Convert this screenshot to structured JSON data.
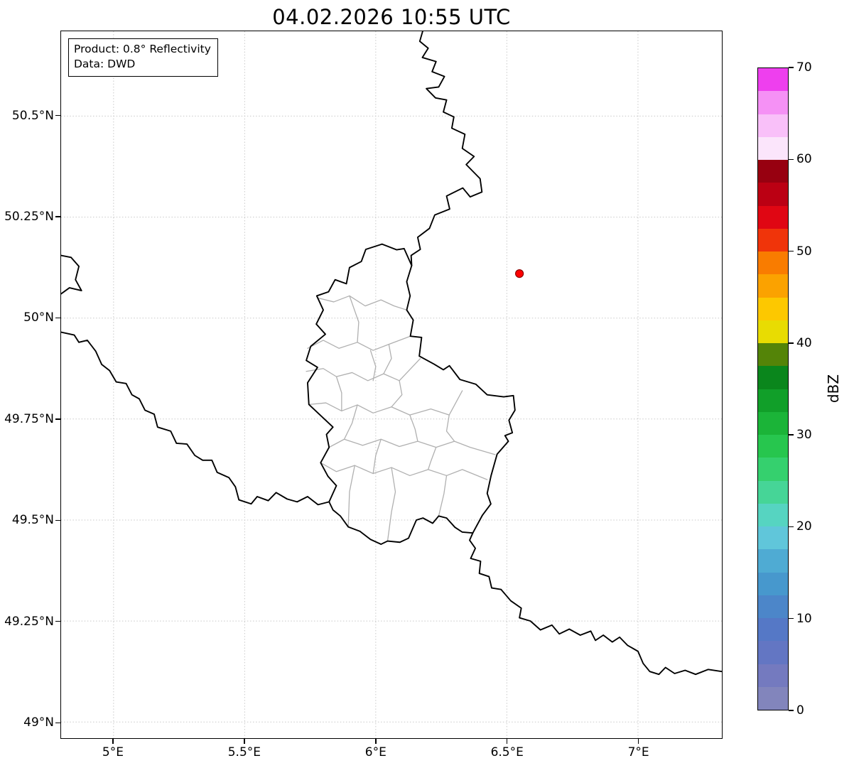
{
  "title": "04.02.2026 10:55 UTC",
  "annotation": {
    "product": "Product: 0.8° Reflectivity",
    "source": "Data: DWD"
  },
  "map": {
    "extent": {
      "lon_min": 4.8,
      "lon_max": 7.32,
      "lat_min": 48.96,
      "lat_max": 50.71
    },
    "colors": {
      "grid": "#c8c8c8",
      "country_border": "#000000",
      "region_border": "#b0b0b0"
    },
    "marker": {
      "name": "radar-site",
      "lon": 6.548,
      "lat": 50.11,
      "fill": "#ff0000",
      "edge": "#8b0000"
    },
    "x_ticks": [
      {
        "label": "5°E",
        "lon": 5.0
      },
      {
        "label": "5.5°E",
        "lon": 5.5
      },
      {
        "label": "6°E",
        "lon": 6.0
      },
      {
        "label": "6.5°E",
        "lon": 6.5
      },
      {
        "label": "7°E",
        "lon": 7.0
      }
    ],
    "y_ticks": [
      {
        "label": "49°N",
        "lat": 49.0
      },
      {
        "label": "49.25°N",
        "lat": 49.25
      },
      {
        "label": "49.5°N",
        "lat": 49.5
      },
      {
        "label": "49.75°N",
        "lat": 49.75
      },
      {
        "label": "50°N",
        "lat": 50.0
      },
      {
        "label": "50.25°N",
        "lat": 50.25
      },
      {
        "label": "50.5°N",
        "lat": 50.5
      }
    ],
    "country_borders": [
      [
        [
          6.179,
          50.71
        ],
        [
          6.168,
          50.685
        ],
        [
          6.2,
          50.668
        ],
        [
          6.178,
          50.645
        ],
        [
          6.23,
          50.635
        ],
        [
          6.215,
          50.61
        ],
        [
          6.262,
          50.598
        ],
        [
          6.24,
          50.572
        ],
        [
          6.193,
          50.568
        ],
        [
          6.228,
          50.545
        ],
        [
          6.27,
          50.54
        ],
        [
          6.258,
          50.51
        ],
        [
          6.298,
          50.498
        ],
        [
          6.29,
          50.47
        ],
        [
          6.34,
          50.455
        ],
        [
          6.33,
          50.42
        ],
        [
          6.375,
          50.4
        ],
        [
          6.345,
          50.38
        ],
        [
          6.398,
          50.345
        ],
        [
          6.405,
          50.312
        ],
        [
          6.36,
          50.3
        ],
        [
          6.332,
          50.322
        ],
        [
          6.27,
          50.302
        ],
        [
          6.282,
          50.27
        ],
        [
          6.225,
          50.255
        ],
        [
          6.205,
          50.222
        ],
        [
          6.16,
          50.2
        ],
        [
          6.17,
          50.17
        ],
        [
          6.135,
          50.155
        ],
        [
          6.137,
          50.13
        ]
      ],
      [
        [
          6.024,
          50.183
        ],
        [
          6.08,
          50.169
        ],
        [
          6.108,
          50.172
        ],
        [
          6.137,
          50.13
        ],
        [
          6.118,
          50.09
        ],
        [
          6.131,
          50.055
        ],
        [
          6.118,
          50.02
        ],
        [
          6.143,
          49.995
        ],
        [
          6.132,
          49.955
        ],
        [
          6.175,
          49.952
        ],
        [
          6.166,
          49.906
        ],
        [
          6.222,
          49.886
        ],
        [
          6.258,
          49.872
        ],
        [
          6.281,
          49.882
        ],
        [
          6.321,
          49.848
        ],
        [
          6.382,
          49.836
        ],
        [
          6.425,
          49.81
        ],
        [
          6.488,
          49.805
        ],
        [
          6.525,
          49.808
        ],
        [
          6.531,
          49.772
        ],
        [
          6.508,
          49.747
        ],
        [
          6.521,
          49.716
        ],
        [
          6.493,
          49.709
        ],
        [
          6.506,
          49.695
        ],
        [
          6.463,
          49.663
        ],
        [
          6.44,
          49.61
        ],
        [
          6.425,
          49.566
        ],
        [
          6.439,
          49.54
        ],
        [
          6.407,
          49.512
        ],
        [
          6.37,
          49.468
        ],
        [
          6.33,
          49.47
        ],
        [
          6.302,
          49.482
        ],
        [
          6.27,
          49.505
        ],
        [
          6.24,
          49.51
        ],
        [
          6.217,
          49.492
        ],
        [
          6.18,
          49.505
        ],
        [
          6.155,
          49.5
        ],
        [
          6.125,
          49.455
        ],
        [
          6.092,
          49.445
        ],
        [
          6.045,
          49.448
        ],
        [
          6.02,
          49.44
        ],
        [
          5.98,
          49.452
        ],
        [
          5.94,
          49.472
        ],
        [
          5.895,
          49.483
        ],
        [
          5.865,
          49.51
        ],
        [
          5.837,
          49.525
        ],
        [
          5.822,
          49.545
        ],
        [
          5.85,
          49.585
        ],
        [
          5.818,
          49.608
        ],
        [
          5.79,
          49.642
        ],
        [
          5.822,
          49.68
        ],
        [
          5.812,
          49.712
        ],
        [
          5.837,
          49.73
        ],
        [
          5.745,
          49.786
        ],
        [
          5.74,
          49.84
        ],
        [
          5.778,
          49.878
        ],
        [
          5.735,
          49.895
        ],
        [
          5.752,
          49.93
        ],
        [
          5.808,
          49.96
        ],
        [
          5.773,
          49.985
        ],
        [
          5.8,
          50.02
        ],
        [
          5.775,
          50.055
        ],
        [
          5.82,
          50.065
        ],
        [
          5.845,
          50.095
        ],
        [
          5.888,
          50.085
        ],
        [
          5.9,
          50.125
        ],
        [
          5.945,
          50.14
        ],
        [
          5.962,
          50.17
        ],
        [
          6.024,
          50.183
        ]
      ],
      [
        [
          4.8,
          50.155
        ],
        [
          4.838,
          50.15
        ],
        [
          4.868,
          50.128
        ],
        [
          4.855,
          50.095
        ],
        [
          4.878,
          50.068
        ],
        [
          4.832,
          50.075
        ],
        [
          4.8,
          50.06
        ]
      ],
      [
        [
          4.8,
          49.965
        ],
        [
          4.85,
          49.958
        ],
        [
          4.868,
          49.94
        ],
        [
          4.9,
          49.945
        ],
        [
          4.932,
          49.918
        ],
        [
          4.955,
          49.885
        ],
        [
          4.985,
          49.87
        ],
        [
          5.01,
          49.842
        ],
        [
          5.048,
          49.838
        ],
        [
          5.07,
          49.81
        ],
        [
          5.098,
          49.8
        ],
        [
          5.12,
          49.772
        ],
        [
          5.155,
          49.762
        ],
        [
          5.168,
          49.73
        ],
        [
          5.218,
          49.72
        ],
        [
          5.24,
          49.69
        ],
        [
          5.28,
          49.688
        ],
        [
          5.31,
          49.66
        ],
        [
          5.34,
          49.648
        ],
        [
          5.375,
          49.648
        ],
        [
          5.395,
          49.618
        ],
        [
          5.44,
          49.605
        ],
        [
          5.465,
          49.582
        ],
        [
          5.478,
          49.55
        ],
        [
          5.525,
          49.54
        ],
        [
          5.548,
          49.558
        ],
        [
          5.59,
          49.548
        ],
        [
          5.62,
          49.568
        ],
        [
          5.662,
          49.552
        ],
        [
          5.7,
          49.545
        ],
        [
          5.74,
          49.558
        ],
        [
          5.78,
          49.538
        ],
        [
          5.822,
          49.545
        ]
      ],
      [
        [
          6.37,
          49.468
        ],
        [
          6.358,
          49.45
        ],
        [
          6.38,
          49.43
        ],
        [
          6.362,
          49.405
        ],
        [
          6.4,
          49.398
        ],
        [
          6.395,
          49.368
        ],
        [
          6.432,
          49.36
        ],
        [
          6.442,
          49.332
        ],
        [
          6.478,
          49.328
        ],
        [
          6.515,
          49.3
        ],
        [
          6.555,
          49.282
        ],
        [
          6.548,
          49.258
        ],
        [
          6.59,
          49.25
        ],
        [
          6.628,
          49.228
        ],
        [
          6.672,
          49.24
        ],
        [
          6.7,
          49.218
        ],
        [
          6.738,
          49.23
        ],
        [
          6.78,
          49.215
        ],
        [
          6.82,
          49.225
        ],
        [
          6.838,
          49.202
        ],
        [
          6.868,
          49.215
        ],
        [
          6.902,
          49.198
        ],
        [
          6.93,
          49.21
        ],
        [
          6.96,
          49.19
        ],
        [
          7.0,
          49.175
        ],
        [
          7.02,
          49.145
        ],
        [
          7.045,
          49.125
        ],
        [
          7.08,
          49.118
        ],
        [
          7.105,
          49.135
        ],
        [
          7.14,
          49.12
        ],
        [
          7.18,
          49.128
        ],
        [
          7.22,
          49.118
        ],
        [
          7.268,
          49.13
        ],
        [
          7.32,
          49.125
        ]
      ]
    ],
    "region_borders": [
      [
        [
          5.778,
          50.05
        ],
        [
          5.84,
          50.04
        ],
        [
          5.9,
          50.055
        ],
        [
          5.96,
          50.03
        ],
        [
          6.02,
          50.045
        ],
        [
          6.07,
          50.03
        ],
        [
          6.118,
          50.02
        ]
      ],
      [
        [
          5.74,
          49.925
        ],
        [
          5.8,
          49.945
        ],
        [
          5.86,
          49.925
        ],
        [
          5.93,
          49.94
        ],
        [
          5.99,
          49.92
        ],
        [
          6.05,
          49.935
        ],
        [
          6.132,
          49.955
        ]
      ],
      [
        [
          5.9,
          50.055
        ],
        [
          5.935,
          49.99
        ],
        [
          5.93,
          49.94
        ]
      ],
      [
        [
          5.735,
          49.868
        ],
        [
          5.8,
          49.875
        ],
        [
          5.85,
          49.855
        ],
        [
          5.91,
          49.865
        ],
        [
          5.97,
          49.845
        ],
        [
          6.03,
          49.862
        ],
        [
          6.09,
          49.845
        ],
        [
          6.17,
          49.9
        ]
      ],
      [
        [
          5.745,
          49.786
        ],
        [
          5.81,
          49.79
        ],
        [
          5.87,
          49.77
        ],
        [
          5.93,
          49.785
        ],
        [
          5.99,
          49.765
        ],
        [
          6.06,
          49.78
        ],
        [
          6.13,
          49.76
        ],
        [
          6.21,
          49.775
        ],
        [
          6.28,
          49.76
        ],
        [
          6.33,
          49.82
        ]
      ],
      [
        [
          5.822,
          49.68
        ],
        [
          5.88,
          49.7
        ],
        [
          5.95,
          49.685
        ],
        [
          6.02,
          49.7
        ],
        [
          6.09,
          49.682
        ],
        [
          6.16,
          49.695
        ],
        [
          6.23,
          49.68
        ],
        [
          6.3,
          49.695
        ],
        [
          6.36,
          49.68
        ],
        [
          6.455,
          49.662
        ]
      ],
      [
        [
          5.79,
          49.642
        ],
        [
          5.85,
          49.62
        ],
        [
          5.92,
          49.635
        ],
        [
          5.99,
          49.615
        ],
        [
          6.06,
          49.63
        ],
        [
          6.13,
          49.61
        ],
        [
          6.2,
          49.625
        ],
        [
          6.27,
          49.61
        ],
        [
          6.33,
          49.625
        ],
        [
          6.425,
          49.6
        ]
      ],
      [
        [
          5.98,
          49.92
        ],
        [
          6.0,
          49.88
        ],
        [
          5.99,
          49.845
        ]
      ],
      [
        [
          6.05,
          49.935
        ],
        [
          6.06,
          49.9
        ],
        [
          6.03,
          49.862
        ]
      ],
      [
        [
          5.85,
          49.855
        ],
        [
          5.87,
          49.815
        ],
        [
          5.87,
          49.77
        ]
      ],
      [
        [
          6.09,
          49.845
        ],
        [
          6.1,
          49.81
        ],
        [
          6.06,
          49.78
        ]
      ],
      [
        [
          5.93,
          49.785
        ],
        [
          5.91,
          49.74
        ],
        [
          5.88,
          49.7
        ]
      ],
      [
        [
          6.13,
          49.76
        ],
        [
          6.15,
          49.725
        ],
        [
          6.16,
          49.695
        ]
      ],
      [
        [
          6.28,
          49.76
        ],
        [
          6.27,
          49.72
        ],
        [
          6.3,
          49.695
        ]
      ],
      [
        [
          6.02,
          49.7
        ],
        [
          6.0,
          49.66
        ],
        [
          5.99,
          49.615
        ]
      ],
      [
        [
          6.23,
          49.68
        ],
        [
          6.21,
          49.645
        ],
        [
          6.2,
          49.625
        ]
      ],
      [
        [
          6.06,
          49.63
        ],
        [
          6.075,
          49.57
        ],
        [
          6.06,
          49.52
        ],
        [
          6.045,
          49.448
        ]
      ],
      [
        [
          6.27,
          49.61
        ],
        [
          6.26,
          49.565
        ],
        [
          6.24,
          49.51
        ]
      ],
      [
        [
          5.92,
          49.635
        ],
        [
          5.9,
          49.57
        ],
        [
          5.895,
          49.483
        ]
      ]
    ]
  },
  "colorbar": {
    "label": "dBZ",
    "vmin": 0,
    "vmax": 70,
    "tick_values": [
      0,
      10,
      20,
      30,
      40,
      50,
      60,
      70
    ],
    "tick_labels": [
      "0",
      "10",
      "20",
      "30",
      "40",
      "50",
      "60",
      "70"
    ],
    "segment_colors_bottom_to_top": [
      "#8285bc",
      "#747abf",
      "#6376c3",
      "#5578c6",
      "#4c86c9",
      "#4798cd",
      "#4fabd3",
      "#60c6da",
      "#56d4c1",
      "#46d597",
      "#35d06e",
      "#27c64e",
      "#1bb438",
      "#119f29",
      "#0a861c",
      "#548408",
      "#e8dc02",
      "#fdc800",
      "#fba200",
      "#f97c00",
      "#f0340a",
      "#e00613",
      "#bb0013",
      "#970010",
      "#fbe5fb",
      "#f9c0f9",
      "#f591f5",
      "#ee3fee"
    ]
  }
}
